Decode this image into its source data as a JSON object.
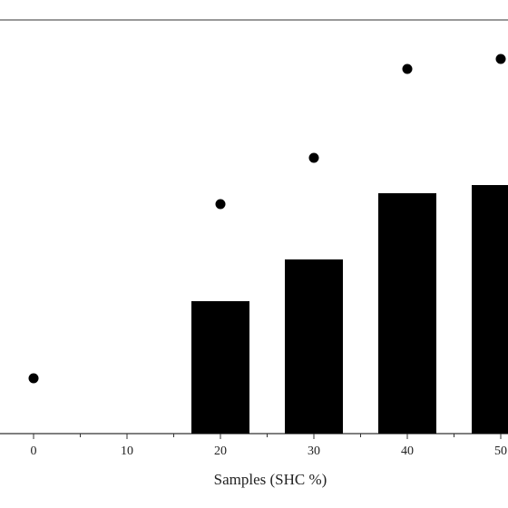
{
  "chart_data": {
    "type": "bar",
    "title": "",
    "xlabel": "Samples (SHC %)",
    "ylabel": "",
    "x_ticks": [
      0,
      10,
      20,
      30,
      40,
      50
    ],
    "x_tick_labels": [
      "0",
      "10",
      "20",
      "30",
      "40",
      "50"
    ],
    "xlim": [
      -3,
      51
    ],
    "bar_color": "#000000",
    "point_color": "#000000",
    "series": [
      {
        "type": "bar",
        "x": [
          20,
          30,
          40,
          50
        ],
        "values": [
          146,
          192,
          265,
          274
        ]
      },
      {
        "type": "scatter",
        "x": [
          0,
          20,
          30,
          40,
          50
        ],
        "values": [
          61,
          253,
          304,
          402,
          413
        ]
      }
    ],
    "y_scale_note_hidden": true
  }
}
